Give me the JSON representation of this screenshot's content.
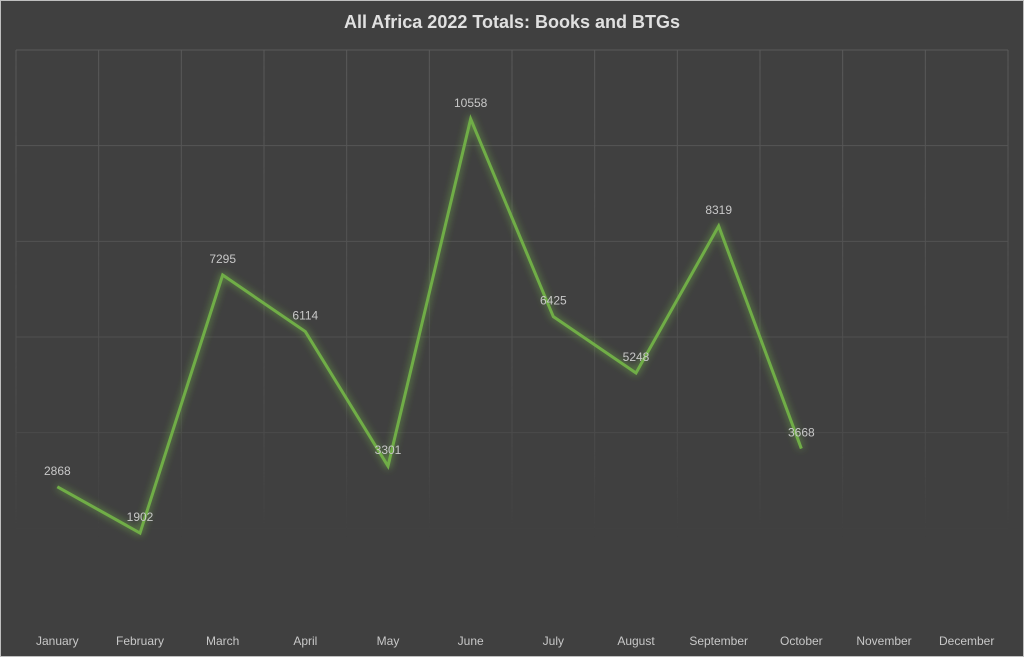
{
  "chart_data": {
    "type": "line",
    "title": "All Africa 2022 Totals: Books and BTGs",
    "xlabel": "",
    "ylabel": "",
    "categories": [
      "January",
      "February",
      "March",
      "April",
      "May",
      "June",
      "July",
      "August",
      "September",
      "October",
      "November",
      "December"
    ],
    "series": [
      {
        "name": "Totals",
        "values": [
          2868,
          1902,
          7295,
          6114,
          3301,
          10558,
          6425,
          5248,
          8319,
          3668,
          null,
          null
        ],
        "color": "#70ad47"
      }
    ],
    "ylim": [
      0,
      12000
    ],
    "ytick_step": 2000,
    "grid": true,
    "legend": "none",
    "data_labels": true,
    "background": "#404040"
  }
}
